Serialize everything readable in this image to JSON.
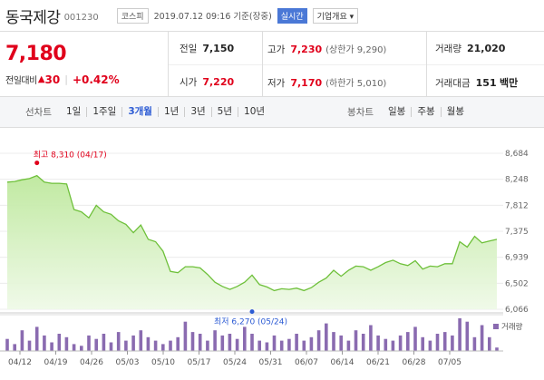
{
  "header": {
    "name": "동국제강",
    "code": "001230",
    "market": "코스피",
    "timestamp": "2019.07.12 09:16 기준(장중)",
    "realtime": "실시간",
    "company_btn": "기업개요 ▾"
  },
  "price": {
    "current": "7,180",
    "change_label": "전일대비",
    "change_icon": "up-triangle-icon",
    "change_arrow": "▲",
    "change": "30",
    "change_pct": "+0.42%"
  },
  "stats": {
    "prev_label": "전일",
    "prev": "7,150",
    "high_label": "고가",
    "high": "7,230",
    "high_sub": "(상한가 9,290)",
    "volume_label": "거래량",
    "volume": "21,020",
    "open_label": "시가",
    "open": "7,220",
    "low_label": "저가",
    "low": "7,170",
    "low_sub": "(하한가 5,010)",
    "amount_label": "거래대금",
    "amount": "151",
    "amount_unit": "백만"
  },
  "tabs": {
    "line_label": "선차트",
    "line_items": [
      "1일",
      "1주일",
      "3개월",
      "1년",
      "3년",
      "5년",
      "10년"
    ],
    "active": "3개월",
    "candle_label": "봉차트",
    "candle_items": [
      "일봉",
      "주봉",
      "월봉"
    ]
  },
  "colors": {
    "up": "#e0001b",
    "accent": "#2c5bd4",
    "line": "#6ec03a",
    "fill": "#bde89c",
    "volume": "#8a6bb0"
  },
  "chart_data": {
    "type": "area",
    "ylim": [
      6066,
      8684
    ],
    "y_ticks": [
      "8,684",
      "8,248",
      "7,812",
      "7,375",
      "6,939",
      "6,502",
      "6,066"
    ],
    "x_ticks": [
      "04/12",
      "04/19",
      "04/26",
      "05/03",
      "05/10",
      "05/17",
      "05/24",
      "05/31",
      "06/07",
      "06/14",
      "06/21",
      "06/28",
      "07/05"
    ],
    "max_annotation": "최고 8,310 (04/17)",
    "min_annotation": "최저 6,270 (05/24)",
    "max_value": 8310,
    "min_value": 6270,
    "values": [
      8200,
      8210,
      8240,
      8260,
      8310,
      8200,
      8180,
      8180,
      8170,
      7740,
      7700,
      7600,
      7810,
      7700,
      7660,
      7550,
      7490,
      7350,
      7480,
      7240,
      7200,
      7040,
      6700,
      6680,
      6780,
      6780,
      6760,
      6650,
      6520,
      6450,
      6400,
      6450,
      6520,
      6640,
      6480,
      6440,
      6380,
      6410,
      6400,
      6420,
      6380,
      6430,
      6520,
      6590,
      6720,
      6620,
      6720,
      6790,
      6780,
      6720,
      6780,
      6850,
      6890,
      6830,
      6800,
      6880,
      6740,
      6790,
      6780,
      6830,
      6830,
      7200,
      7110,
      7290,
      7180,
      7210,
      7240
    ],
    "volume_label": "거래량",
    "volumes": [
      0.35,
      0.2,
      0.6,
      0.3,
      0.7,
      0.45,
      0.25,
      0.5,
      0.4,
      0.2,
      0.15,
      0.45,
      0.35,
      0.5,
      0.25,
      0.55,
      0.3,
      0.45,
      0.6,
      0.4,
      0.3,
      0.2,
      0.3,
      0.4,
      0.85,
      0.55,
      0.5,
      0.3,
      0.6,
      0.45,
      0.5,
      0.35,
      0.7,
      0.5,
      0.3,
      0.25,
      0.45,
      0.3,
      0.35,
      0.5,
      0.3,
      0.4,
      0.6,
      0.8,
      0.55,
      0.45,
      0.3,
      0.6,
      0.5,
      0.75,
      0.45,
      0.35,
      0.3,
      0.45,
      0.55,
      0.7,
      0.4,
      0.3,
      0.5,
      0.55,
      0.45,
      0.95,
      0.85,
      0.4,
      0.75,
      0.4,
      0.1
    ]
  }
}
